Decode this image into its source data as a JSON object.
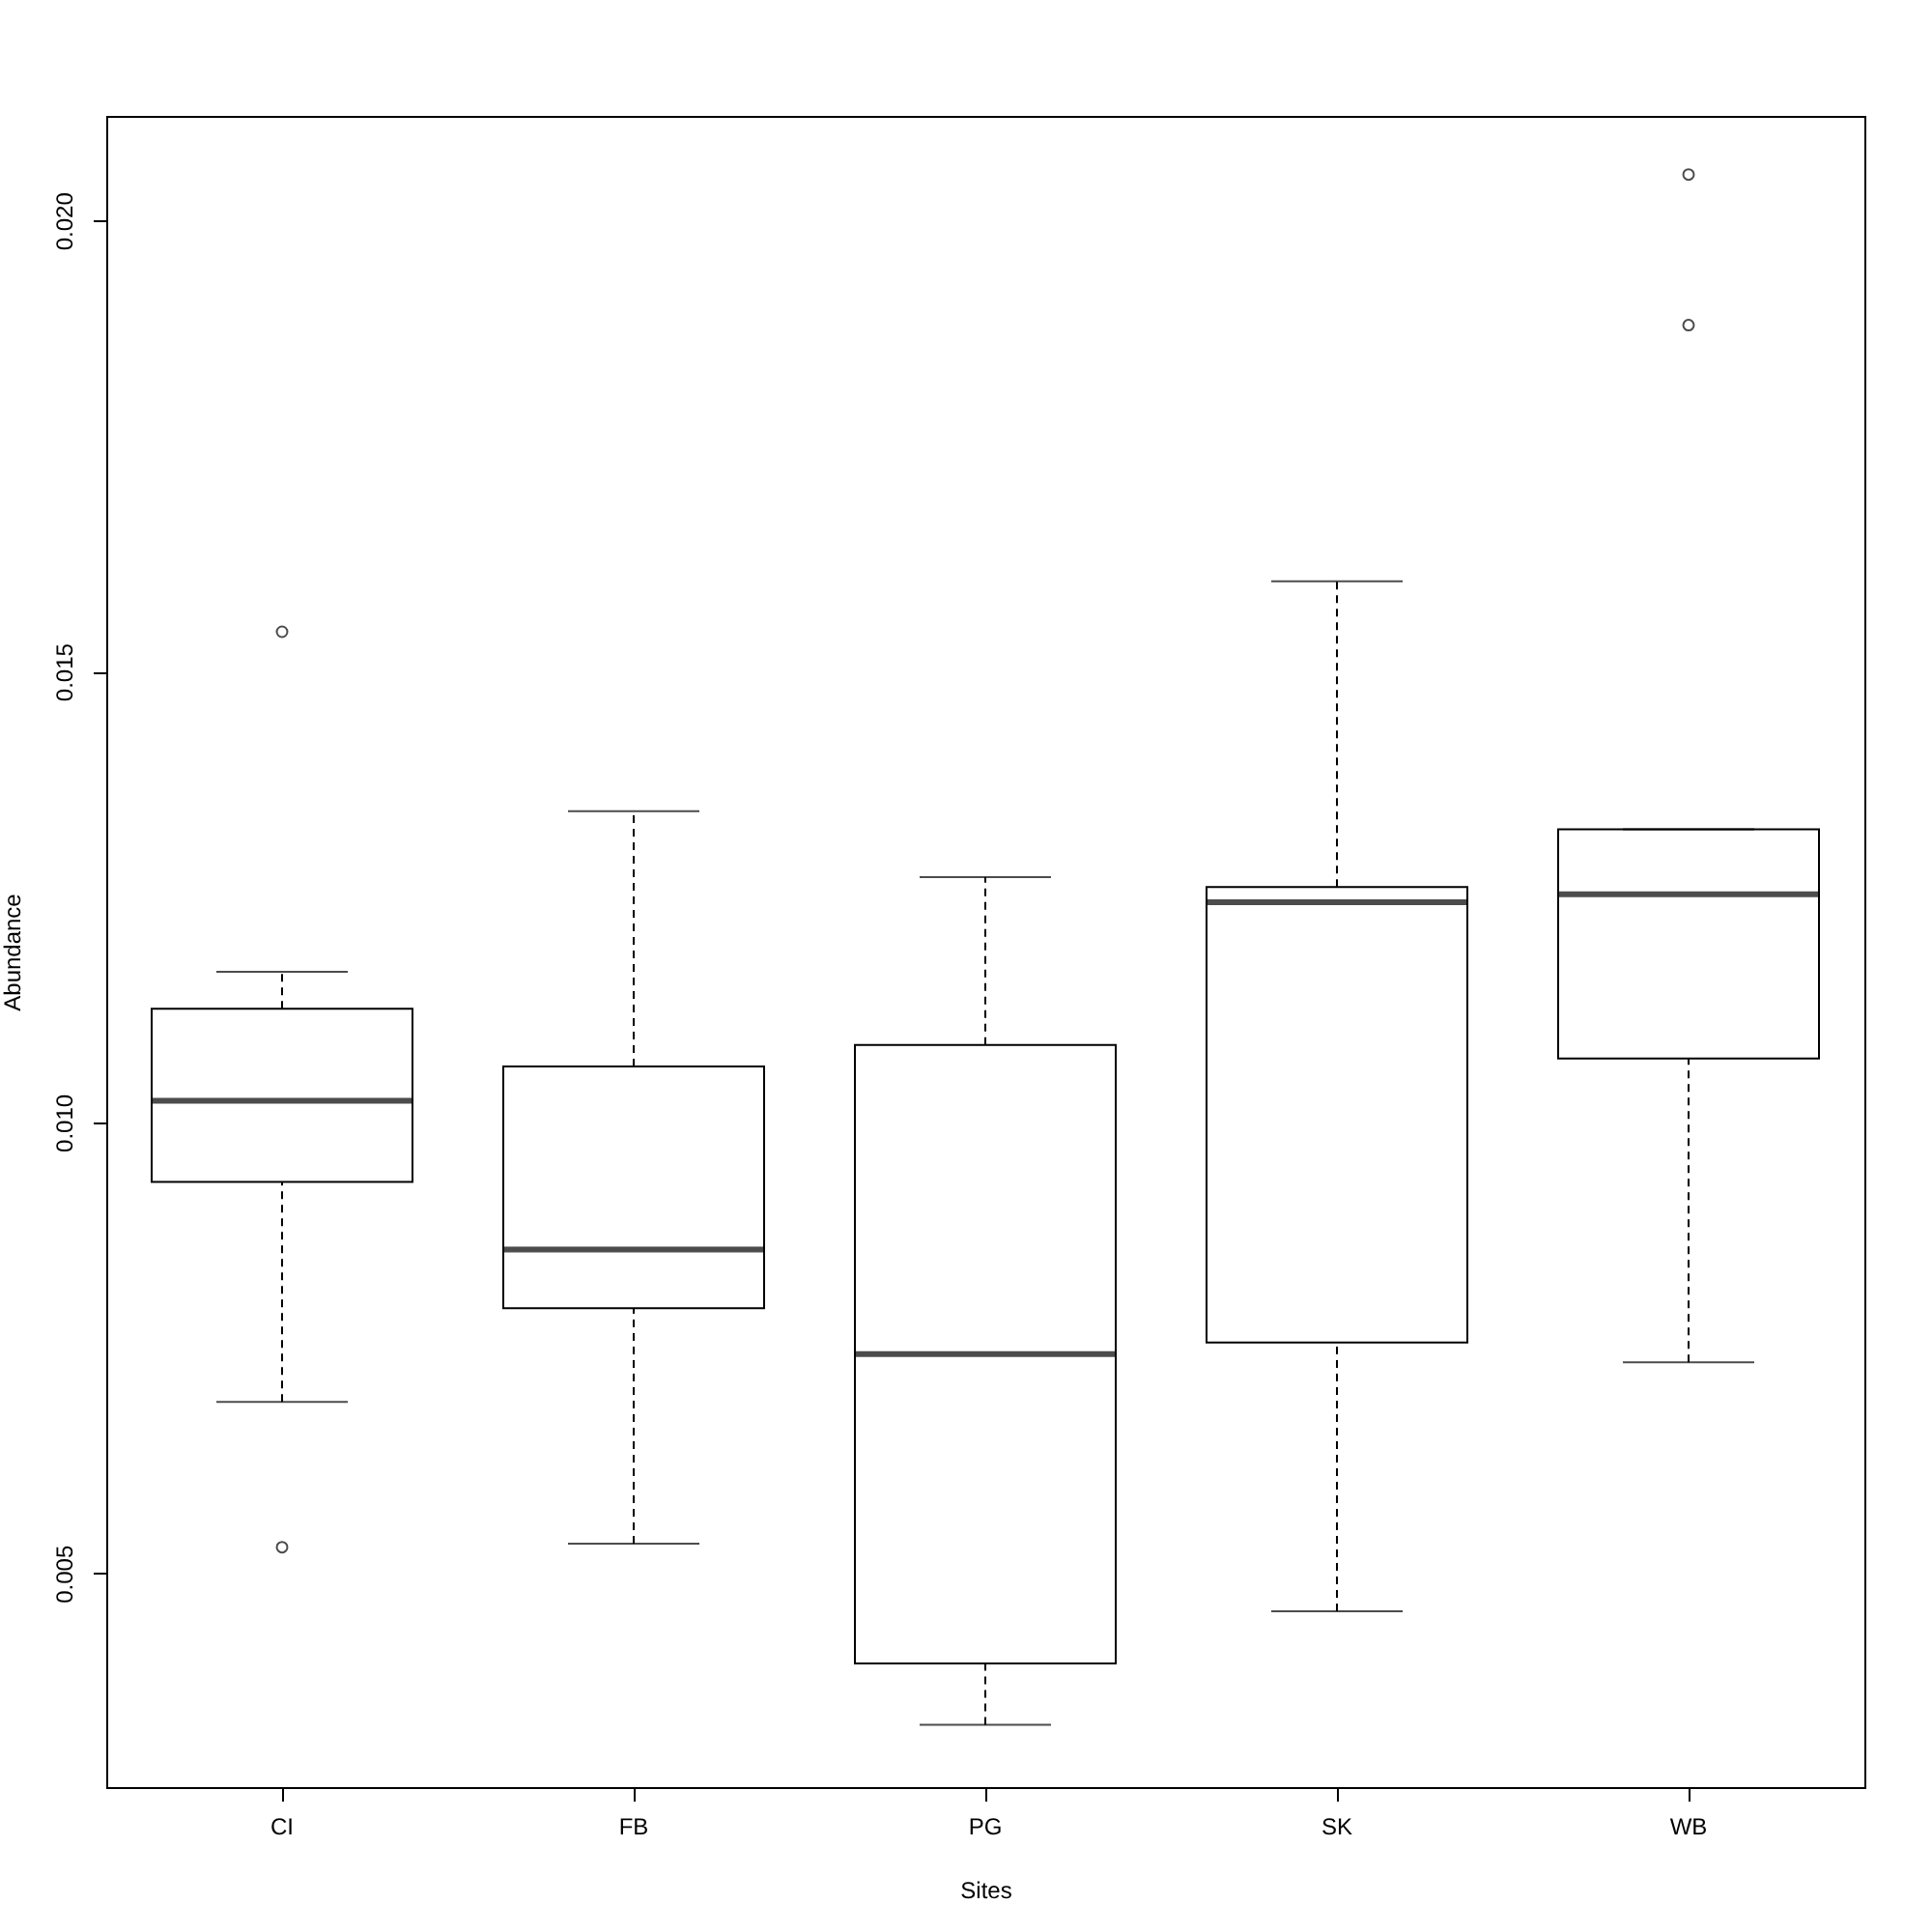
{
  "chart_data": {
    "type": "box",
    "xlabel": "Sites",
    "ylabel": "Abundance",
    "categories": [
      "CI",
      "FB",
      "PG",
      "SK",
      "WB"
    ],
    "boxes": [
      {
        "low": 0.0069,
        "q1": 0.00934,
        "median": 0.01024,
        "q3": 0.01126,
        "high": 0.01167,
        "outliers": [
          0.01544,
          0.00529
        ]
      },
      {
        "low": 0.00533,
        "q1": 0.00794,
        "median": 0.00859,
        "q3": 0.01062,
        "high": 0.01345
      },
      {
        "low": 0.00332,
        "q1": 0.004,
        "median": 0.00743,
        "q3": 0.01086,
        "high": 0.01272
      },
      {
        "low": 0.00458,
        "q1": 0.00756,
        "median": 0.01244,
        "q3": 0.01261,
        "high": 0.016
      },
      {
        "low": 0.00734,
        "q1": 0.01071,
        "median": 0.01253,
        "q3": 0.01325,
        "high": 0.01325,
        "outliers": [
          0.02051,
          0.01884
        ]
      }
    ],
    "ylim": [
      0.00263,
      0.02116
    ],
    "yticks": [
      {
        "value": 0.005,
        "label": "0.005"
      },
      {
        "value": 0.01,
        "label": "0.010"
      },
      {
        "value": 0.015,
        "label": "0.015"
      },
      {
        "value": 0.02,
        "label": "0.020"
      }
    ]
  }
}
